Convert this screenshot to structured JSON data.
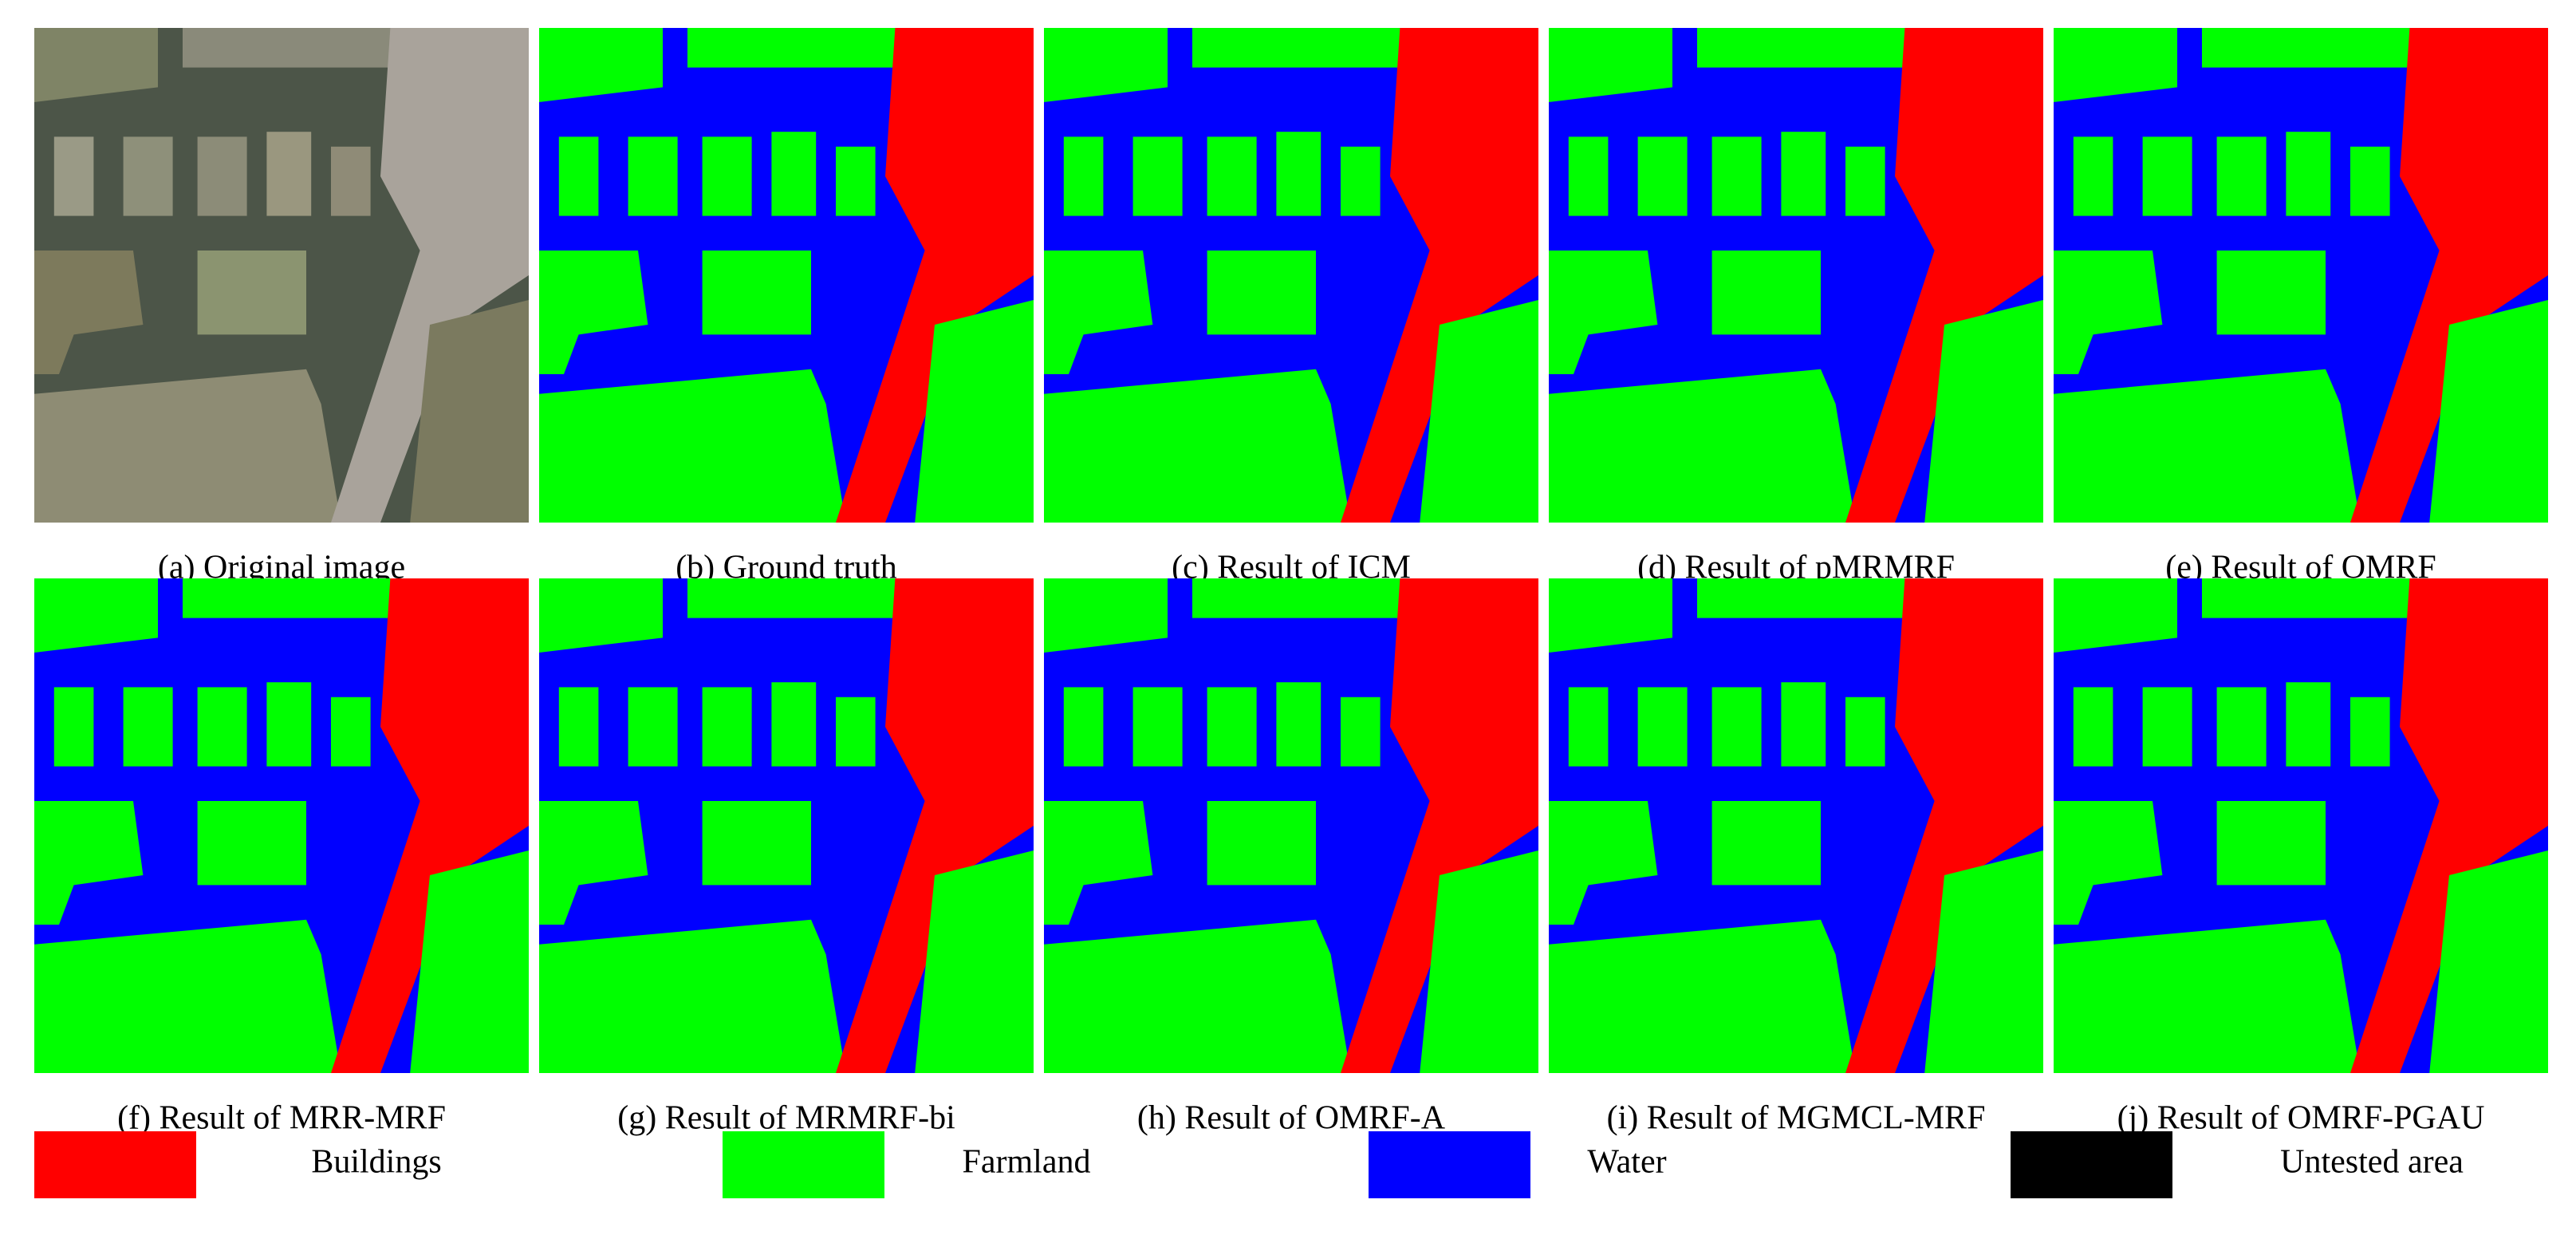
{
  "panels": [
    {
      "caption": "(a) Original image"
    },
    {
      "caption": "(b) Ground truth"
    },
    {
      "caption": "(c) Result of ICM"
    },
    {
      "caption": "(d) Result of pMRMRF"
    },
    {
      "caption": "(e) Result of OMRF"
    },
    {
      "caption": "(f) Result of MRR-MRF"
    },
    {
      "caption": "(g) Result of MRMRF-bi"
    },
    {
      "caption": "(h) Result of OMRF-A"
    },
    {
      "caption": "(i) Result of MGMCL-MRF"
    },
    {
      "caption": "(j) Result of OMRF-PGAU"
    }
  ],
  "legend": [
    {
      "label": "Buildings",
      "color": "#ff0000"
    },
    {
      "label": "Farmland",
      "color": "#00ff00"
    },
    {
      "label": "Water",
      "color": "#0000ff"
    },
    {
      "label": "Untested area",
      "color": "#000000"
    }
  ]
}
